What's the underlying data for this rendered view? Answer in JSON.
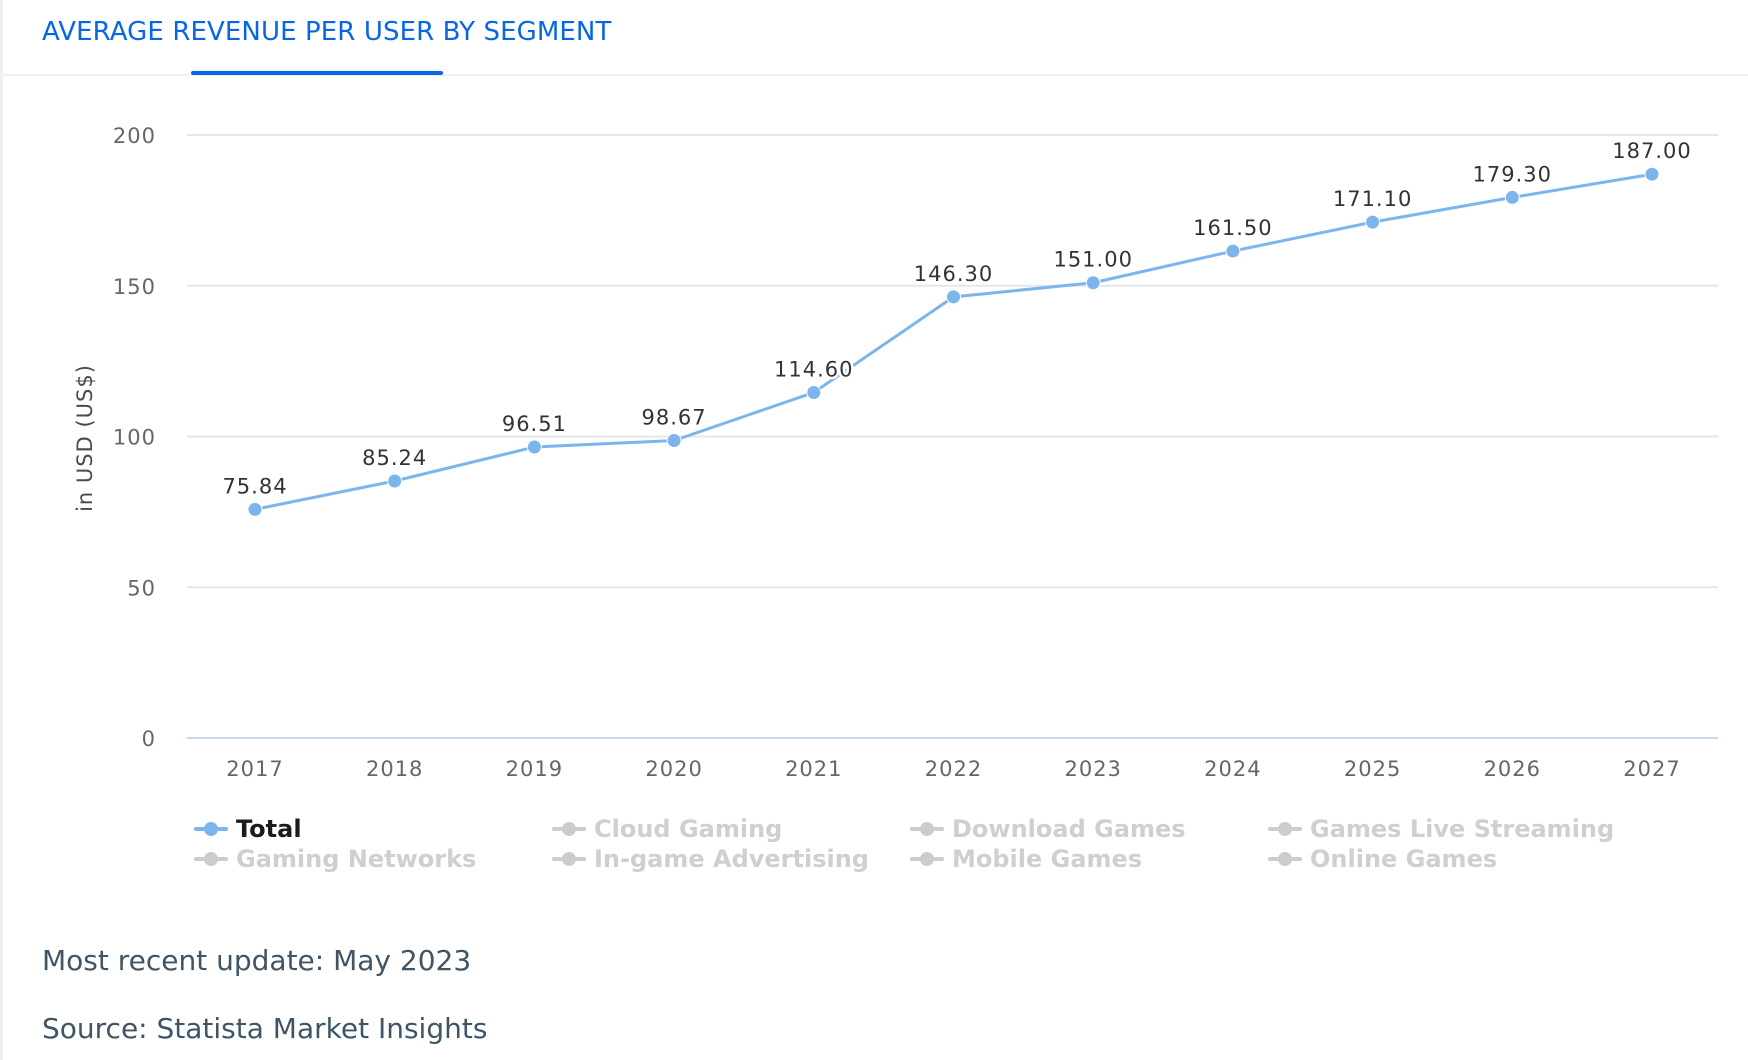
{
  "header": {
    "title": "AVERAGE REVENUE PER USER BY SEGMENT"
  },
  "colors": {
    "accent": "#0666e5",
    "series_total": "#7cb5ec",
    "inactive": "#cccccc",
    "grid": "#e6e6e6",
    "axis_text": "#666666"
  },
  "chart_data": {
    "type": "line",
    "title": "",
    "xlabel": "",
    "ylabel": "in USD (US$)",
    "ylim": [
      0,
      200
    ],
    "yticks": [
      0,
      50,
      100,
      150,
      200
    ],
    "categories": [
      "2017",
      "2018",
      "2019",
      "2020",
      "2021",
      "2022",
      "2023",
      "2024",
      "2025",
      "2026",
      "2027"
    ],
    "series": [
      {
        "name": "Total",
        "values": [
          75.84,
          85.24,
          96.51,
          98.67,
          114.6,
          146.3,
          151.0,
          161.5,
          171.1,
          179.3,
          187.0
        ],
        "labels": [
          "75.84",
          "85.24",
          "96.51",
          "98.67",
          "114.60",
          "146.30",
          "151.00",
          "161.50",
          "171.10",
          "179.30",
          "187.00"
        ],
        "visible": true
      }
    ],
    "grid": true,
    "legend_position": "bottom"
  },
  "legend": {
    "items": [
      {
        "label": "Total",
        "active": true
      },
      {
        "label": "Cloud Gaming",
        "active": false
      },
      {
        "label": "Download Games",
        "active": false
      },
      {
        "label": "Games Live Streaming",
        "active": false
      },
      {
        "label": "Gaming Networks",
        "active": false
      },
      {
        "label": "In-game Advertising",
        "active": false
      },
      {
        "label": "Mobile Games",
        "active": false
      },
      {
        "label": "Online Games",
        "active": false
      }
    ]
  },
  "footer": {
    "update": "Most recent update: May 2023",
    "source": "Source: Statista Market Insights"
  }
}
